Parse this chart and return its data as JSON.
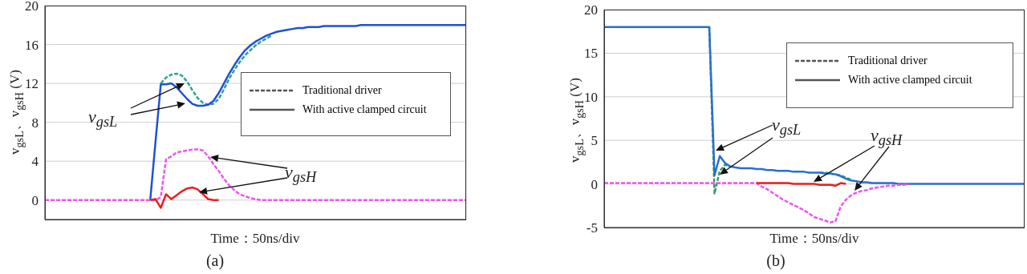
{
  "chart_data": [
    {
      "type": "line",
      "title": "(a)",
      "xlabel": "Time：50ns/div",
      "ylabel": "v$_{gsL}$、v$_{gsH}$ (V)",
      "categories": [
        null,
        null,
        null,
        null,
        null,
        null,
        null,
        null,
        null,
        null,
        null,
        null,
        null,
        null,
        null,
        null,
        null,
        null,
        null,
        null,
        null,
        null,
        null,
        null,
        null,
        null,
        null,
        null,
        null,
        null,
        null,
        null,
        null,
        null,
        null,
        null,
        null,
        null,
        null,
        null,
        null,
        null,
        null,
        null,
        null,
        null,
        null,
        null,
        null,
        null,
        null,
        null,
        null,
        null,
        null,
        null,
        null,
        null,
        null,
        null,
        null,
        null,
        null,
        null,
        null,
        null,
        null,
        null,
        null,
        null,
        null,
        null,
        null,
        null,
        null,
        null,
        null,
        null,
        null,
        null,
        null
      ],
      "ylim": [
        -2,
        20
      ],
      "yticks": [
        0,
        4,
        8,
        12,
        16,
        20
      ],
      "grid": true,
      "marker": "none",
      "annotations": [
        "Traditional driver",
        "With active clamped circuit",
        "v$_{gsL}$",
        "v$_{gsH}$"
      ],
      "series": [
        {
          "color": "#2ca58d",
          "line_style": "dashed",
          "values": [
            null,
            null,
            null,
            null,
            null,
            null,
            null,
            null,
            null,
            null,
            null,
            null,
            null,
            null,
            null,
            null,
            null,
            null,
            null,
            null,
            null,
            null,
            12,
            12.6,
            12.9,
            13,
            12.8,
            12.2,
            11.3,
            10.5,
            10,
            9.8,
            9.9,
            10.4,
            11.4,
            12.5,
            13.4,
            14.2,
            14.9,
            15.4,
            15.9,
            16.3,
            16.6,
            16.9,
            null,
            null,
            null,
            null,
            null,
            null,
            null,
            null,
            null,
            null,
            null,
            null,
            null,
            null,
            null,
            null,
            null,
            null,
            null,
            null,
            null,
            null,
            null,
            null,
            null,
            null,
            null,
            null,
            null,
            null,
            null,
            null,
            null,
            null,
            null,
            null,
            null
          ]
        },
        {
          "color": "#2150d8",
          "line_style": "solid",
          "values": [
            null,
            null,
            null,
            null,
            null,
            null,
            null,
            null,
            null,
            null,
            null,
            null,
            null,
            null,
            null,
            null,
            null,
            null,
            null,
            null,
            0,
            6,
            11.9,
            11.9,
            12,
            11.6,
            11,
            10.4,
            9.9,
            9.7,
            9.7,
            9.8,
            10.2,
            11,
            12,
            13,
            13.9,
            14.7,
            15.4,
            15.9,
            16.3,
            16.6,
            16.9,
            17.1,
            17.3,
            17.4,
            17.5,
            17.6,
            17.7,
            17.7,
            17.8,
            17.8,
            17.8,
            17.9,
            17.9,
            17.9,
            17.9,
            17.9,
            17.9,
            17.9,
            18,
            18,
            18,
            18,
            18,
            18,
            18,
            18,
            18,
            18,
            18,
            18,
            18,
            18,
            18,
            18,
            18,
            18,
            18,
            18,
            18
          ]
        },
        {
          "color": "#ee55ee",
          "line_style": "dashed",
          "values": [
            0,
            0,
            0,
            0,
            0,
            0,
            0,
            0,
            0,
            0,
            0,
            0,
            0,
            0,
            0,
            0,
            0,
            0,
            0,
            0,
            0,
            0,
            0.3,
            4.2,
            4.5,
            4.9,
            5,
            5.1,
            5.2,
            5.2,
            5.1,
            4.5,
            3.7,
            3,
            2.2,
            1.5,
            1,
            0.6,
            0.4,
            0.2,
            0.1,
            0,
            0,
            0,
            0,
            0,
            0,
            0,
            0,
            0,
            0,
            0,
            0,
            0,
            0,
            0,
            0,
            0,
            0,
            0,
            0,
            0,
            0,
            0,
            0,
            0,
            0,
            0,
            0,
            0,
            0,
            0,
            0,
            0,
            0,
            0,
            0,
            0,
            0,
            0,
            0
          ]
        },
        {
          "color": "#e82020",
          "line_style": "solid",
          "values": [
            null,
            null,
            null,
            null,
            null,
            null,
            null,
            null,
            null,
            null,
            null,
            null,
            null,
            null,
            null,
            null,
            null,
            null,
            null,
            null,
            0,
            0.1,
            -0.8,
            0.6,
            0.1,
            0.5,
            0.9,
            1.2,
            1.3,
            1.1,
            0.6,
            0.1,
            0,
            0,
            null,
            null,
            null,
            null,
            null,
            null,
            null,
            null,
            null,
            null,
            null,
            null,
            null,
            null,
            null,
            null,
            null,
            null,
            null,
            null,
            null,
            null,
            null,
            null,
            null,
            null,
            null,
            null,
            null,
            null,
            null,
            null,
            null,
            null,
            null,
            null,
            null,
            null,
            null,
            null,
            null,
            null,
            null,
            null,
            null,
            null,
            null
          ]
        }
      ]
    },
    {
      "type": "line",
      "title": "(b)",
      "xlabel": "Time：50ns/div",
      "ylabel": "v$_{gsL}$、v$_{gsH}$ (V)",
      "categories": [
        null,
        null,
        null,
        null,
        null,
        null,
        null,
        null,
        null,
        null,
        null,
        null,
        null,
        null,
        null,
        null,
        null,
        null,
        null,
        null,
        null,
        null,
        null,
        null,
        null,
        null,
        null,
        null,
        null,
        null,
        null,
        null,
        null,
        null,
        null,
        null,
        null,
        null,
        null,
        null,
        null,
        null,
        null,
        null,
        null,
        null,
        null,
        null,
        null,
        null,
        null,
        null,
        null,
        null,
        null,
        null,
        null,
        null,
        null,
        null,
        null,
        null,
        null,
        null,
        null,
        null,
        null,
        null,
        null,
        null,
        null,
        null,
        null,
        null,
        null,
        null,
        null,
        null,
        null,
        null,
        null
      ],
      "ylim": [
        -5,
        20
      ],
      "yticks": [
        -5,
        0,
        5,
        10,
        15,
        20
      ],
      "grid": true,
      "marker": "none",
      "annotations": [
        "Traditional driver",
        "With active clamped circuit",
        "v$_{gsL}$",
        "v$_{gsH}$"
      ],
      "series": [
        {
          "color": "#3a9a6a",
          "line_style": "dashed",
          "values": [
            null,
            null,
            null,
            null,
            null,
            null,
            null,
            null,
            null,
            null,
            null,
            null,
            null,
            null,
            null,
            null,
            null,
            null,
            null,
            null,
            18,
            -1.1,
            1.5,
            2.2,
            2,
            null,
            null,
            null,
            null,
            null,
            null,
            null,
            null,
            null,
            null,
            null,
            null,
            null,
            null,
            null,
            null,
            1.3,
            1.3,
            1.2,
            1.1,
            1,
            0.7,
            0.5,
            null,
            null,
            null,
            null,
            null,
            null,
            null,
            null,
            null,
            null,
            null,
            null,
            null,
            null,
            null,
            null,
            null,
            null,
            null,
            null,
            null,
            null,
            null,
            null,
            null,
            null,
            null,
            null,
            null,
            null,
            null,
            null,
            null
          ]
        },
        {
          "color": "#2a6fd0",
          "line_style": "solid",
          "values": [
            18,
            18,
            18,
            18,
            18,
            18,
            18,
            18,
            18,
            18,
            18,
            18,
            18,
            18,
            18,
            18,
            18,
            18,
            18,
            18,
            18,
            1,
            3.2,
            2.4,
            2,
            1.9,
            1.8,
            1.8,
            1.8,
            1.7,
            1.7,
            1.6,
            1.6,
            1.5,
            1.5,
            1.5,
            1.4,
            1.4,
            1.4,
            1.3,
            1.3,
            1.3,
            1.2,
            1.2,
            1.1,
            0.9,
            0.6,
            0.4,
            0.3,
            0.2,
            0.2,
            0.1,
            0.1,
            0.1,
            0.1,
            0.1,
            0,
            0,
            0,
            0,
            0,
            0,
            0,
            0,
            0,
            0,
            0,
            0,
            0,
            0,
            0,
            0,
            0,
            0,
            0,
            0,
            0,
            0,
            0,
            0,
            0
          ]
        },
        {
          "color": "#ee55ee",
          "line_style": "dashed",
          "values": [
            0.1,
            0.1,
            0.1,
            0.1,
            0.1,
            0.1,
            0.1,
            0.1,
            0.1,
            0.1,
            0.1,
            0.1,
            0.1,
            0.1,
            0.1,
            0.1,
            0.1,
            0.1,
            0.1,
            0.1,
            0.1,
            0.1,
            0.1,
            0.1,
            0.1,
            0.1,
            0.1,
            0.1,
            0.1,
            0.1,
            -0.3,
            -0.6,
            -1,
            -1.4,
            -1.8,
            -2.1,
            -2.4,
            -2.7,
            -3,
            -3.4,
            -3.8,
            -4,
            -4.2,
            -4.4,
            -4.3,
            -2.6,
            -1.8,
            -1.3,
            -1,
            -0.8,
            -0.7,
            -0.5,
            -0.4,
            -0.3,
            -0.2,
            -0.2,
            -0.1,
            -0.1,
            0,
            null,
            null,
            null,
            null,
            null,
            null,
            null,
            null,
            null,
            null,
            null,
            null,
            null,
            null,
            null,
            null,
            null,
            null,
            null,
            null,
            null,
            null
          ]
        },
        {
          "color": "#e82020",
          "line_style": "solid",
          "values": [
            null,
            null,
            null,
            null,
            null,
            null,
            null,
            null,
            null,
            null,
            null,
            null,
            null,
            null,
            null,
            null,
            null,
            null,
            null,
            null,
            null,
            null,
            null,
            null,
            null,
            null,
            null,
            null,
            null,
            0.1,
            0.1,
            0.1,
            0.1,
            0.1,
            0.1,
            0.1,
            0,
            0,
            0,
            0,
            0,
            -0.1,
            -0.1,
            -0.1,
            -0.2,
            0.1,
            0,
            null,
            null,
            null,
            null,
            null,
            null,
            null,
            null,
            null,
            null,
            null,
            null,
            null,
            null,
            null,
            null,
            null,
            null,
            null,
            null,
            null,
            null,
            null,
            null,
            null,
            null,
            null,
            null,
            null,
            null,
            null,
            null,
            null,
            null
          ]
        }
      ]
    }
  ]
}
